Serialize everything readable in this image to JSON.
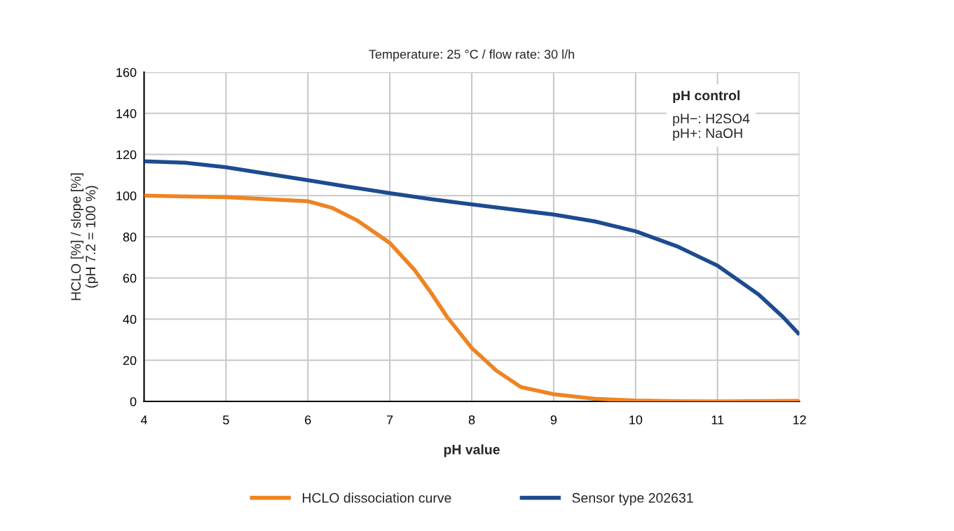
{
  "chart_data": {
    "type": "line",
    "title": "Temperature: 25 °C / flow rate: 30 l/h",
    "xlabel": "pH value",
    "ylabel": "HCLO [%] / slope [%]\n(pH 7.2 = 100 %)",
    "series": [
      {
        "name": "HCLO dissociation curve",
        "color": "#ee8423",
        "x": [
          4,
          5,
          6,
          6.3,
          6.6,
          7,
          7.3,
          7.5,
          7.7,
          8,
          8.3,
          8.6,
          9,
          9.5,
          10,
          10.5,
          11,
          12
        ],
        "values": [
          100,
          99.3,
          97.3,
          94,
          88,
          77,
          64,
          53,
          41,
          26,
          15,
          7,
          3.5,
          1.3,
          0.4,
          0.1,
          0,
          0.3
        ]
      },
      {
        "name": "Sensor type 202631",
        "color": "#1d4b8f",
        "x": [
          4,
          4.5,
          5,
          5.5,
          6,
          6.5,
          7,
          7.5,
          8,
          8.5,
          9,
          9.5,
          10,
          10.5,
          11,
          11.5,
          11.8,
          12
        ],
        "values": [
          116.7,
          116,
          113.8,
          110.7,
          107.5,
          104.3,
          101.2,
          98.3,
          95.8,
          93.3,
          90.8,
          87.5,
          82.7,
          75.5,
          66,
          52,
          41,
          32.5
        ]
      }
    ],
    "xlim": [
      4,
      12
    ],
    "xticks": [
      4,
      5,
      6,
      7,
      8,
      9,
      10,
      11,
      12
    ],
    "ylim": [
      0,
      160
    ],
    "yticks": [
      0,
      20,
      40,
      60,
      80,
      100,
      120,
      140,
      160
    ],
    "grid": true,
    "legend": "bottom",
    "line_style": "solid",
    "marker": "none",
    "annotations": [
      "pH control",
      "pH−: H2SO4\npH+: NaOH"
    ]
  }
}
